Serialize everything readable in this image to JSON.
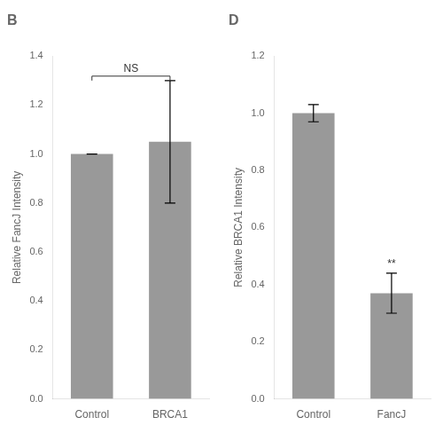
{
  "chart_data": [
    {
      "type": "bar",
      "title": "B",
      "categories": [
        "Control",
        "BRCA1"
      ],
      "values": [
        1.0,
        1.05
      ],
      "errors": [
        0.0,
        0.25
      ],
      "color": "#999999",
      "ylabel": "Relative FancJ Intensity",
      "ylim": [
        0,
        1.4
      ],
      "yticks": [
        {
          "value": 0,
          "label": "0.0"
        },
        0.2,
        0.4,
        0.6,
        0.8,
        {
          "value": 1.0,
          "label": "1.0"
        },
        1.2,
        1.4
      ],
      "annotations": [
        {
          "text": "NS",
          "categories": [
            "Control",
            "BRCA1"
          ]
        }
      ],
      "grid": false
    },
    {
      "type": "bar",
      "title": "D",
      "categories": [
        "Control",
        "FancJ"
      ],
      "values": [
        1.0,
        0.37
      ],
      "errors": [
        0.03,
        0.07
      ],
      "color": "#999999",
      "ylabel": "Relative BRCA1 Intensity",
      "ylim": [
        0,
        1.2
      ],
      "yticks": [
        {
          "value": 0,
          "label": "0.0"
        },
        0.2,
        0.4,
        0.6,
        0.8,
        {
          "value": 1.0,
          "label": "1.0"
        },
        1.2
      ],
      "annotations": [
        {
          "text": "**",
          "categories": [
            "FancJ"
          ]
        }
      ],
      "grid": false
    }
  ]
}
